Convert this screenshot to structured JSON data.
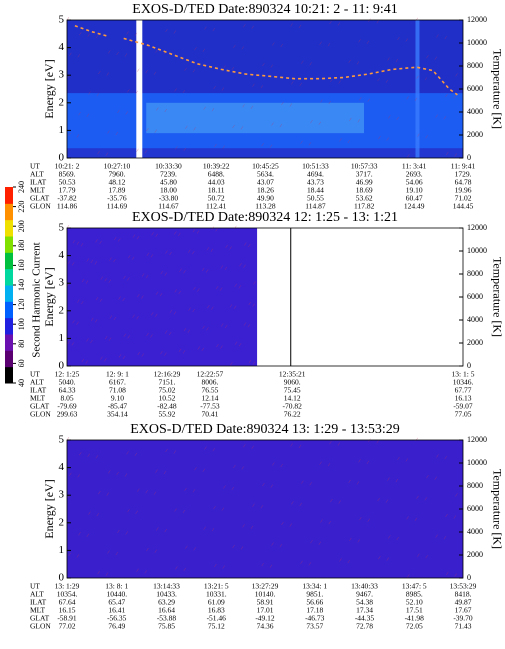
{
  "colorbar": {
    "label": "Second Harmonic Current",
    "lim": [
      40,
      240
    ],
    "ticks": [
      40,
      60,
      80,
      100,
      120,
      140,
      160,
      180,
      200,
      220,
      240
    ]
  },
  "chart_data": [
    {
      "type": "spectrogram",
      "title": "EXOS-D/TED   Date:890324  10:21: 2 - 11: 9:41",
      "ylabel": "Energy [eV]",
      "y2label": "Temperature [K]",
      "ylim": [
        0,
        5
      ],
      "yticks": [
        0,
        1,
        2,
        3,
        4,
        5
      ],
      "y2lim": [
        0,
        12000
      ],
      "y2ticks": [
        0,
        2000,
        4000,
        6000,
        8000,
        10000,
        12000
      ],
      "series": [
        {
          "color": "#ff9a3c",
          "axis": "y2",
          "x": [
            "10:22",
            "10:24",
            "10:26",
            "10:27",
            "10:28",
            "10:31",
            "10:34",
            "10:37",
            "10:40",
            "10:43",
            "10:46",
            "10:49",
            "10:52",
            "10:55",
            "10:58",
            "11:01",
            "11:04",
            "11:06",
            "11:08",
            "11:09"
          ],
          "values": [
            11500,
            11000,
            10600,
            null,
            10400,
            9800,
            9000,
            8200,
            7700,
            7300,
            7100,
            6900,
            6900,
            7000,
            7300,
            7700,
            7900,
            7600,
            6000,
            5500
          ]
        }
      ],
      "table": [
        {
          "label": "UT",
          "cells": [
            "10:21: 2",
            "10:27:10",
            "10:33:30",
            "10:39:22",
            "10:45:25",
            "10:51:33",
            "10:57:33",
            "11: 3:41",
            "11: 9:41"
          ]
        },
        {
          "label": "ALT",
          "cells": [
            "8569.",
            "7960.",
            "7239.",
            "6488.",
            "5634.",
            "4694.",
            "3717.",
            "2693.",
            "1729."
          ]
        },
        {
          "label": "ILAT",
          "cells": [
            "50.53",
            "48.12",
            "45.80",
            "44.03",
            "43.07",
            "43.73",
            "46.99",
            "54.06",
            "64.78"
          ]
        },
        {
          "label": "MLT",
          "cells": [
            "17.79",
            "17.89",
            "18.00",
            "18.11",
            "18.26",
            "18.44",
            "18.69",
            "19.10",
            "19.96"
          ]
        },
        {
          "label": "GLAT",
          "cells": [
            "-37.82",
            "-35.76",
            "-33.80",
            "50.72",
            "49.90",
            "50.55",
            "53.62",
            "60.47",
            "71.02"
          ]
        },
        {
          "label": "GLON",
          "cells": [
            "114.86",
            "114.69",
            "114.67",
            "112.41",
            "113.28",
            "114.87",
            "117.82",
            "124.49",
            "144.45"
          ]
        }
      ]
    },
    {
      "type": "spectrogram",
      "title": "EXOS-D/TED   Date:890324  12: 1:25 - 13: 1:21",
      "ylabel": "Energy [eV]",
      "y2label": "Temperature [K]",
      "ylim": [
        0,
        5
      ],
      "yticks": [
        0,
        1,
        2,
        3,
        4,
        5
      ],
      "y2lim": [
        0,
        12000
      ],
      "y2ticks": [
        0,
        2000,
        4000,
        6000,
        8000,
        10000,
        12000
      ],
      "table": [
        {
          "label": "UT",
          "cells": [
            "12: 1:25",
            "12: 9: 1",
            "12:16:29",
            "12:22:57",
            "12:35:21",
            "13: 1: 5"
          ]
        },
        {
          "label": "ALT",
          "cells": [
            "5040.",
            "6167.",
            "7151.",
            "8006.",
            "9060.",
            "10346."
          ]
        },
        {
          "label": "ILAT",
          "cells": [
            "64.33",
            "71.08",
            "75.02",
            "76.55",
            "75.45",
            "67.77"
          ]
        },
        {
          "label": "MLT",
          "cells": [
            "8.05",
            "9.10",
            "10.52",
            "12.14",
            "14.12",
            "16.13"
          ]
        },
        {
          "label": "GLAT",
          "cells": [
            "-79.69",
            "-85.47",
            "-82.48",
            "-77.53",
            "-70.82",
            "-59.07"
          ]
        },
        {
          "label": "GLON",
          "cells": [
            "299.63",
            "354.14",
            "55.92",
            "70.41",
            "76.22",
            "77.05"
          ]
        }
      ]
    },
    {
      "type": "spectrogram",
      "title": "EXOS-D/TED   Date:890324  13: 1:29 - 13:53:29",
      "ylabel": "Energy [eV]",
      "y2label": "Temperature [K]",
      "ylim": [
        0,
        5
      ],
      "yticks": [
        0,
        1,
        2,
        3,
        4,
        5
      ],
      "y2lim": [
        0,
        12000
      ],
      "y2ticks": [
        0,
        2000,
        4000,
        6000,
        8000,
        10000,
        12000
      ],
      "table": [
        {
          "label": "UT",
          "cells": [
            "13: 1:29",
            "13: 8: 1",
            "13:14:33",
            "13:21: 5",
            "13:27:29",
            "13:34: 1",
            "13:40:33",
            "13:47: 5",
            "13:53:29"
          ]
        },
        {
          "label": "ALT",
          "cells": [
            "10354.",
            "10440.",
            "10433.",
            "10331.",
            "10140.",
            "9851.",
            "9467.",
            "8985.",
            "8418."
          ]
        },
        {
          "label": "ILAT",
          "cells": [
            "67.64",
            "65.47",
            "63.29",
            "61.09",
            "58.91",
            "56.66",
            "54.38",
            "52.10",
            "49.87"
          ]
        },
        {
          "label": "MLT",
          "cells": [
            "16.15",
            "16.41",
            "16.64",
            "16.83",
            "17.01",
            "17.18",
            "17.34",
            "17.51",
            "17.67"
          ]
        },
        {
          "label": "GLAT",
          "cells": [
            "-58.91",
            "-56.35",
            "-53.88",
            "-51.46",
            "-49.12",
            "-46.73",
            "-44.35",
            "-41.98",
            "-39.70"
          ]
        },
        {
          "label": "GLON",
          "cells": [
            "77.02",
            "76.49",
            "75.85",
            "75.12",
            "74.36",
            "73.57",
            "72.78",
            "72.05",
            "71.43"
          ]
        }
      ]
    }
  ]
}
